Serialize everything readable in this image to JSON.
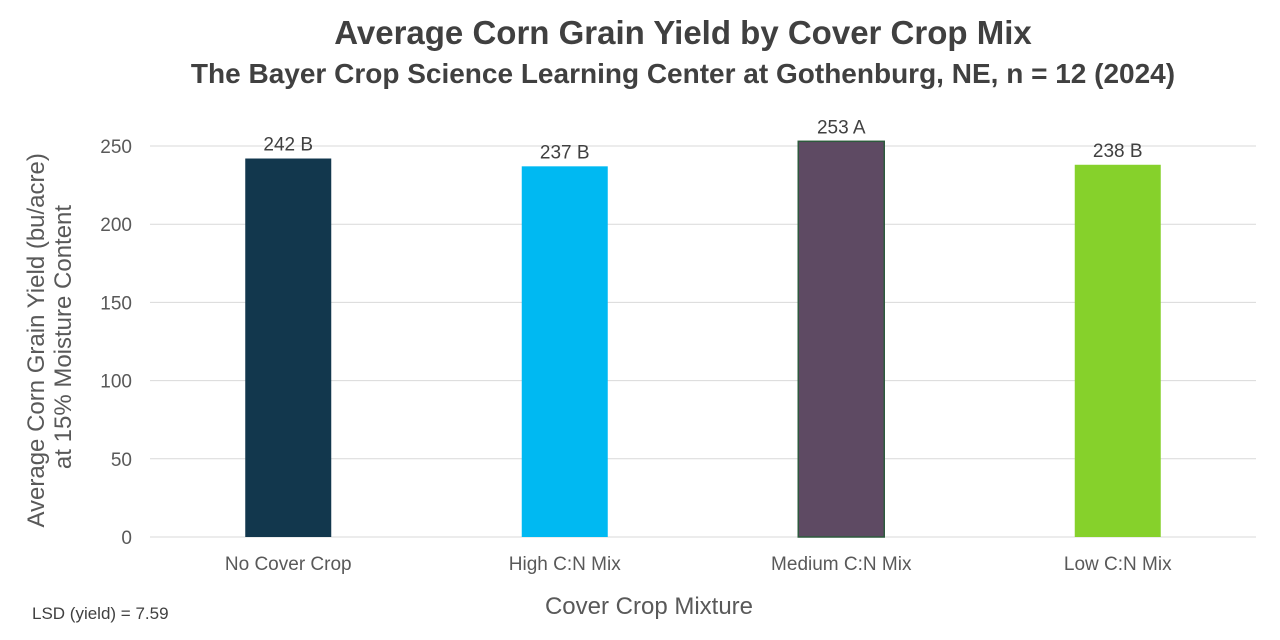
{
  "chart_data": {
    "type": "bar",
    "title": "Average Corn Grain Yield by Cover Crop Mix",
    "subtitle": "The Bayer Crop Science Learning Center at Gothenburg, NE, n = 12 (2024)",
    "categories": [
      "No Cover Crop",
      "High C:N Mix",
      "Medium C:N Mix",
      "Low C:N Mix"
    ],
    "values": [
      242,
      237,
      253,
      238
    ],
    "data_labels": [
      "242 B",
      "237 B",
      "253 A",
      "238 B"
    ],
    "colors": [
      "#12374D",
      "#00B9F2",
      "#5E4A63",
      "#86D12B"
    ],
    "xlabel": "Cover Crop Mixture",
    "ylabel": [
      "Average Corn Grain Yield (bu/acre)",
      "at 15% Moisture Content"
    ],
    "ylim": [
      0,
      250
    ],
    "yticks": [
      0,
      50,
      100,
      150,
      200,
      250
    ],
    "grid": true,
    "note": "LSD (yield) = 7.59"
  }
}
